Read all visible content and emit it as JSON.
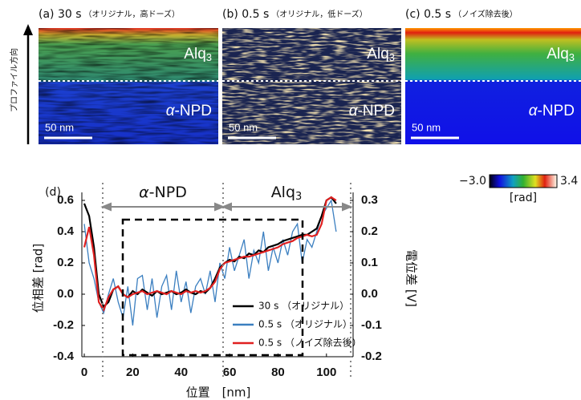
{
  "panels": [
    {
      "label": "(a) 30 s",
      "note": "（オリジナル，高ドーズ）",
      "top_layer": "Alq",
      "top_layer_sub": "3",
      "symbol": "α",
      "bottom_layer": "-NPD",
      "scale_bar": "50 nm"
    },
    {
      "label": "(b) 0.5 s",
      "note": "（オリジナル，低ドーズ）",
      "top_layer": "Alq",
      "top_layer_sub": "3",
      "symbol": "α",
      "bottom_layer": "-NPD",
      "scale_bar": "50 nm"
    },
    {
      "label": "(c) 0.5 s",
      "note": "（ノイズ除去後）",
      "top_layer": "Alq",
      "top_layer_sub": "3",
      "symbol": "α",
      "bottom_layer": "-NPD",
      "scale_bar": "50 nm"
    }
  ],
  "profile_direction": "プロファイル方向",
  "colorbar": {
    "ticks": [
      {
        "value": -3.0,
        "label": "−3.0"
      },
      3.4
    ],
    "unit": "[rad]"
  },
  "chart_data": {
    "type": "line",
    "panel_label": "(d)",
    "regions": [
      {
        "symbol": "α",
        "label": "-NPD"
      },
      {
        "label": "Alq",
        "sub": "3"
      }
    ],
    "x_label": "位置　[nm]",
    "y_label": "位相差 [rad]",
    "y2_label": "電位差 [V]",
    "xlim": [
      -1,
      111
    ],
    "xticks": [
      0,
      20,
      40,
      60,
      80,
      100
    ],
    "ylim": [
      -0.4,
      0.6
    ],
    "yticks": [
      -0.4,
      -0.2,
      {
        "value": 0,
        "label": "0.0"
      },
      0.2,
      0.4,
      0.6
    ],
    "y2lim": [
      -0.2,
      0.3
    ],
    "y2ticks": [
      -0.2,
      -0.1,
      {
        "value": 0,
        "label": "0.0"
      },
      0.1,
      0.2,
      0.3
    ],
    "legend": "lower right",
    "x": [
      0,
      2,
      4,
      6,
      8,
      10,
      12,
      14,
      16,
      18,
      20,
      22,
      24,
      26,
      28,
      30,
      32,
      34,
      36,
      38,
      40,
      42,
      44,
      46,
      48,
      50,
      52,
      54,
      56,
      58,
      60,
      62,
      64,
      66,
      68,
      70,
      72,
      74,
      76,
      78,
      80,
      82,
      84,
      86,
      88,
      90,
      92,
      94,
      96,
      98,
      100,
      102,
      104
    ],
    "series": [
      {
        "name": "30 s （オリジナル）",
        "color": "#000000",
        "values": [
          0.58,
          0.5,
          0.3,
          0.0,
          -0.08,
          -0.05,
          0.03,
          0.05,
          0.0,
          -0.02,
          0.02,
          0.0,
          0.03,
          0.01,
          -0.01,
          0.02,
          0.0,
          0.01,
          0.02,
          0.0,
          0.01,
          0.03,
          0.01,
          0.0,
          0.02,
          0.01,
          0.04,
          0.1,
          0.17,
          0.2,
          0.22,
          0.21,
          0.24,
          0.23,
          0.26,
          0.25,
          0.28,
          0.27,
          0.3,
          0.31,
          0.32,
          0.34,
          0.35,
          0.36,
          0.37,
          0.38,
          0.38,
          0.4,
          0.42,
          0.5,
          0.6,
          0.62,
          0.58
        ]
      },
      {
        "name": "0.5 s （オリジナル）",
        "color": "#3b7fc0",
        "values": [
          0.45,
          0.2,
          0.1,
          -0.05,
          -0.12,
          0.0,
          0.1,
          -0.05,
          -0.15,
          0.05,
          -0.2,
          0.1,
          0.12,
          -0.1,
          0.1,
          -0.15,
          0.05,
          0.12,
          -0.1,
          0.15,
          -0.05,
          0.08,
          -0.12,
          0.05,
          0.1,
          0.0,
          0.15,
          -0.05,
          0.2,
          0.1,
          0.3,
          0.15,
          0.25,
          0.35,
          0.1,
          0.28,
          0.2,
          0.4,
          0.15,
          0.3,
          0.2,
          0.35,
          0.25,
          0.4,
          0.45,
          0.2,
          0.35,
          0.3,
          0.4,
          0.5,
          0.55,
          0.6,
          0.4
        ]
      },
      {
        "name": "0.5 s （ノイズ除去後）",
        "color": "#e02020",
        "values": [
          0.3,
          0.43,
          0.25,
          -0.05,
          -0.1,
          -0.02,
          0.03,
          0.05,
          0.0,
          -0.02,
          0.0,
          0.01,
          0.02,
          0.0,
          0.01,
          0.02,
          0.01,
          0.0,
          0.02,
          0.01,
          0.0,
          0.02,
          0.01,
          0.02,
          0.01,
          0.02,
          0.04,
          0.08,
          0.16,
          0.2,
          0.21,
          0.22,
          0.23,
          0.24,
          0.24,
          0.25,
          0.26,
          0.27,
          0.28,
          0.29,
          0.3,
          0.32,
          0.33,
          0.34,
          0.36,
          0.37,
          0.38,
          0.37,
          0.38,
          0.45,
          0.6,
          0.62,
          0.6
        ]
      }
    ]
  }
}
